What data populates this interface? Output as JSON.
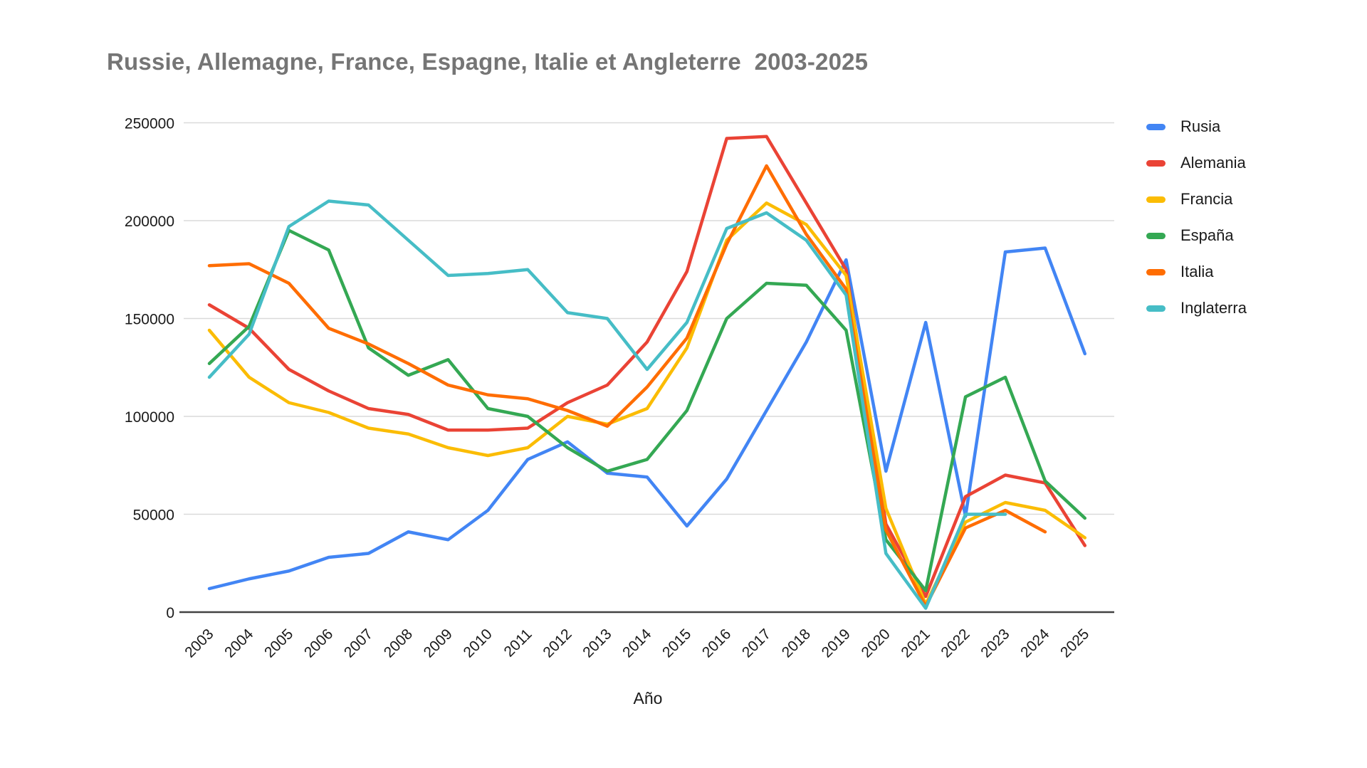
{
  "header": {
    "title": "Russie, Allemagne, France, Espagne, Italie et Angleterre  2003-2025",
    "title_color": "#757575"
  },
  "axes": {
    "x_label": "Año"
  },
  "style": {
    "grid_color": "#dadada",
    "axis_color": "#424242",
    "tick_label_color": "#1a1a1a",
    "line_width": 4.5
  },
  "chart_data": {
    "type": "line",
    "title": "Russie, Allemagne, France, Espagne, Italie et Angleterre  2003-2025",
    "xlabel": "Año",
    "ylabel": "",
    "ylim": [
      0,
      250000
    ],
    "ytick_interval": 50000,
    "yticks": [
      "0",
      "50000",
      "100000",
      "150000",
      "200000",
      "250000"
    ],
    "grid": true,
    "legend_position": "right",
    "categories": [
      "2003",
      "2004",
      "2005",
      "2006",
      "2007",
      "2008",
      "2009",
      "2010",
      "2011",
      "2012",
      "2013",
      "2014",
      "2015",
      "2016",
      "2017",
      "2018",
      "2019",
      "2020",
      "2021",
      "2022",
      "2023",
      "2024",
      "2025"
    ],
    "series": [
      {
        "name": "Rusia",
        "color": "#4285F4",
        "values": [
          12000,
          17000,
          21000,
          28000,
          30000,
          41000,
          37000,
          52000,
          78000,
          87000,
          71000,
          69000,
          44000,
          68000,
          103000,
          138000,
          180000,
          72000,
          148000,
          49000,
          184000,
          186000,
          132000
        ]
      },
      {
        "name": "Alemania",
        "color": "#EA4335",
        "values": [
          157000,
          145000,
          124000,
          113000,
          104000,
          101000,
          93000,
          93000,
          94000,
          107000,
          116000,
          138000,
          174000,
          242000,
          243000,
          209000,
          175000,
          45000,
          8000,
          59000,
          70000,
          66000,
          34000
        ]
      },
      {
        "name": "Francia",
        "color": "#FBBC04",
        "values": [
          144000,
          120000,
          107000,
          102000,
          94000,
          91000,
          84000,
          80000,
          84000,
          100000,
          96000,
          104000,
          135000,
          190000,
          209000,
          198000,
          172000,
          53000,
          4000,
          46000,
          56000,
          52000,
          38000
        ]
      },
      {
        "name": "España",
        "color": "#34A853",
        "values": [
          127000,
          146000,
          195000,
          185000,
          135000,
          121000,
          129000,
          104000,
          100000,
          84000,
          72000,
          78000,
          103000,
          150000,
          168000,
          167000,
          144000,
          37000,
          11000,
          110000,
          120000,
          67000,
          48000
        ]
      },
      {
        "name": "Italia",
        "color": "#FF6D01",
        "values": [
          177000,
          178000,
          168000,
          145000,
          137000,
          127000,
          116000,
          111000,
          109000,
          103000,
          95000,
          115000,
          140000,
          188000,
          228000,
          193000,
          165000,
          42000,
          3000,
          43000,
          52000,
          41000,
          null
        ]
      },
      {
        "name": "Inglaterra",
        "color": "#46BDC6",
        "values": [
          120000,
          142000,
          197000,
          210000,
          208000,
          190000,
          172000,
          173000,
          175000,
          153000,
          150000,
          124000,
          148000,
          196000,
          204000,
          190000,
          162000,
          30000,
          2000,
          50000,
          50000,
          null,
          null
        ]
      }
    ]
  }
}
